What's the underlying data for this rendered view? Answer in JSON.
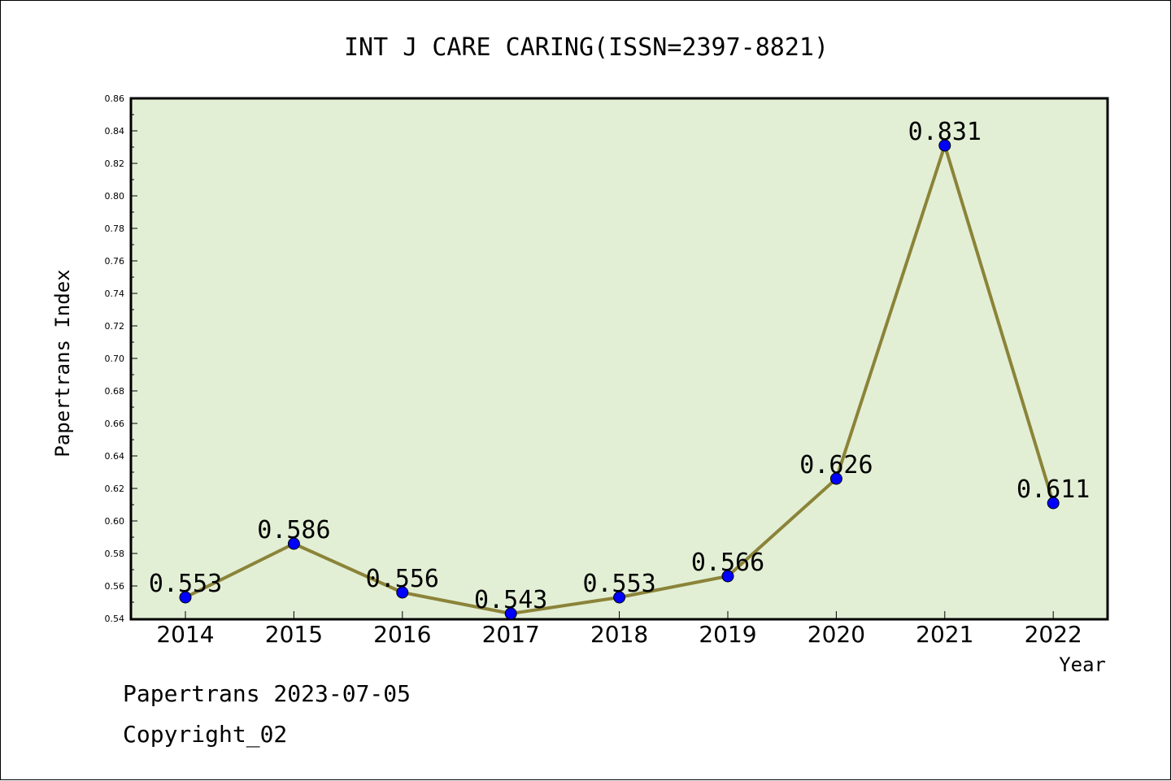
{
  "chart_data": {
    "type": "line",
    "title": "INT J CARE CARING(ISSN=2397-8821)",
    "xlabel": "Year",
    "ylabel": "Papertrans Index",
    "categories": [
      "2014",
      "2015",
      "2016",
      "2017",
      "2018",
      "2019",
      "2020",
      "2021",
      "2022"
    ],
    "series": [
      {
        "values": [
          0.553,
          0.586,
          0.556,
          0.543,
          0.553,
          0.566,
          0.626,
          0.831,
          0.611
        ],
        "labels": [
          "0.553",
          "0.586",
          "0.556",
          "0.543",
          "0.553",
          "0.566",
          "0.626",
          "0.831",
          "0.611"
        ]
      }
    ],
    "ylim": [
      0.54,
      0.86
    ],
    "yticks": [
      "0.54",
      "0.56",
      "0.58",
      "0.60",
      "0.62",
      "0.64",
      "0.66",
      "0.68",
      "0.70",
      "0.72",
      "0.74",
      "0.76",
      "0.78",
      "0.80",
      "0.82",
      "0.84",
      "0.86"
    ],
    "grid": false,
    "legend": "none"
  },
  "footer": {
    "line1": "Papertrans 2023-07-05",
    "line2": "Copyright_02"
  },
  "colors": {
    "plot_background": "#e2efd5",
    "line": "#8b8338",
    "marker": "#0000ff"
  }
}
